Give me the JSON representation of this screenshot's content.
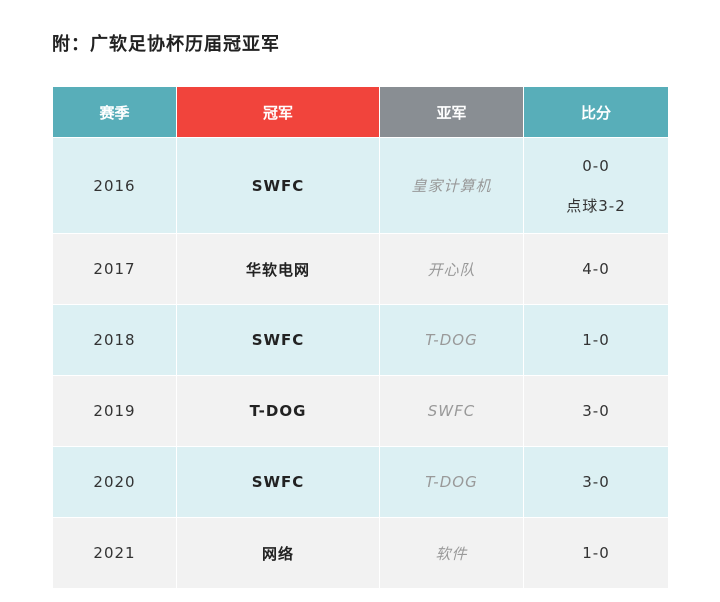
{
  "title": "附：广软足协杯历届冠亚军",
  "table": {
    "headers": [
      "赛季",
      "冠军",
      "亚军",
      "比分"
    ],
    "header_colors": [
      "#58aeb9",
      "#f1443c",
      "#898e93",
      "#58aeb9"
    ],
    "rows": [
      {
        "season": "2016",
        "champion": "SWFC",
        "runner_up": "皇家计算机",
        "score": [
          "0-0",
          "点球3-2"
        ]
      },
      {
        "season": "2017",
        "champion": "华软电网",
        "runner_up": "开心队",
        "score": [
          "4-0"
        ]
      },
      {
        "season": "2018",
        "champion": "SWFC",
        "runner_up": "T-DOG",
        "score": [
          "1-0"
        ]
      },
      {
        "season": "2019",
        "champion": "T-DOG",
        "runner_up": "SWFC",
        "score": [
          "3-0"
        ]
      },
      {
        "season": "2020",
        "champion": "SWFC",
        "runner_up": "T-DOG",
        "score": [
          "3-0"
        ]
      },
      {
        "season": "2021",
        "champion": "网络",
        "runner_up": "软件",
        "score": [
          "1-0"
        ]
      }
    ]
  }
}
